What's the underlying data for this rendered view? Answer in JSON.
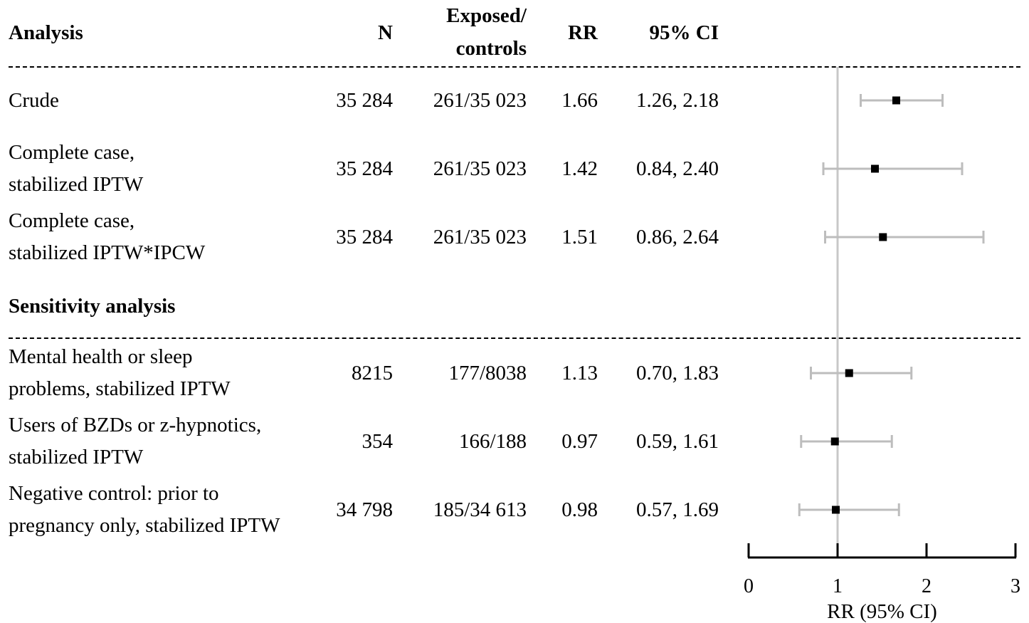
{
  "headers": {
    "analysis": "Analysis",
    "n": "N",
    "exposed_line1": "Exposed/",
    "exposed_line2": "controls",
    "rr": "RR",
    "ci": "95% CI"
  },
  "section_heading": "Sensitivity analysis",
  "chart_data": {
    "type": "forest",
    "xlabel": "RR (95% CI)",
    "xlim": [
      0,
      3
    ],
    "xticks": [
      "0",
      "1",
      "2",
      "3"
    ],
    "reference_line": 1,
    "rows": [
      {
        "label1": "Crude",
        "label2": "",
        "n": "35 284",
        "exposed": "261/35 023",
        "rr_text": "1.66",
        "ci_text": "1.26, 2.18",
        "rr": 1.66,
        "lo": 1.26,
        "hi": 2.18
      },
      {
        "label1": "Complete case,",
        "label2": "stabilized IPTW",
        "n": "35 284",
        "exposed": "261/35 023",
        "rr_text": "1.42",
        "ci_text": "0.84, 2.40",
        "rr": 1.42,
        "lo": 0.84,
        "hi": 2.4
      },
      {
        "label1": "Complete case,",
        "label2": "stabilized IPTW*IPCW",
        "n": "35 284",
        "exposed": "261/35 023",
        "rr_text": "1.51",
        "ci_text": "0.86, 2.64",
        "rr": 1.51,
        "lo": 0.86,
        "hi": 2.64
      },
      {
        "label1": "Mental health or sleep",
        "label2": "problems, stabilized IPTW",
        "n": "8215",
        "exposed": "177/8038",
        "rr_text": "1.13",
        "ci_text": "0.70, 1.83",
        "rr": 1.13,
        "lo": 0.7,
        "hi": 1.83
      },
      {
        "label1": "Users of BZDs or z-hypnotics,",
        "label2": "stabilized IPTW",
        "n": "354",
        "exposed": "166/188",
        "rr_text": "0.97",
        "ci_text": "0.59, 1.61",
        "rr": 0.97,
        "lo": 0.59,
        "hi": 1.61
      },
      {
        "label1": "Negative control: prior to",
        "label2": "pregnancy only, stabilized IPTW",
        "n": "34 798",
        "exposed": "185/34 613",
        "rr_text": "0.98",
        "ci_text": "0.57, 1.69",
        "rr": 0.98,
        "lo": 0.57,
        "hi": 1.69
      }
    ]
  }
}
